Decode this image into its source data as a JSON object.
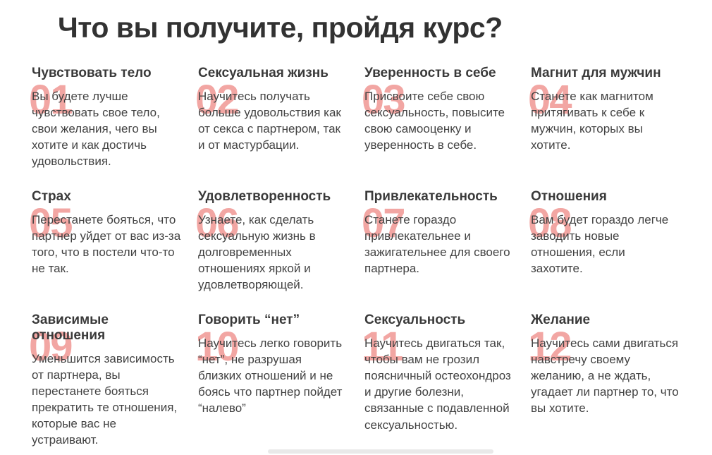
{
  "page": {
    "title": "Что вы получите, пройдя курс?"
  },
  "colors": {
    "title": "#323232",
    "heading": "#3a3a3a",
    "body_text": "#424242",
    "number_accent": "#f2a6a3",
    "background": "#ffffff"
  },
  "cards": [
    {
      "number": "01",
      "heading": "Чувствовать тело",
      "text": "Вы будете лучше чувствовать свое тело, свои желания, чего вы хотите и как достичь удовольствия."
    },
    {
      "number": "02",
      "heading": "Сексуальная жизнь",
      "text": "Научитесь получать больше удовольствия как от секса с партнером, так и от мастурбации."
    },
    {
      "number": "03",
      "heading": "Уверенность в себе",
      "text": "Присвоите себе свою сексуальность, повысите свою самооценку и уверенность в себе."
    },
    {
      "number": "04",
      "heading": "Магнит для мужчин",
      "text": "Станете как магнитом притягивать к себе к мужчин, которых вы хотите."
    },
    {
      "number": "05",
      "heading": "Страх",
      "text": "Перестанете бояться, что партнер уйдет от вас из-за того, что в постели что-то не так."
    },
    {
      "number": "06",
      "heading": "Удовлетворенность",
      "text": "Узнаете, как сделать сексуальную жизнь в долговременных отношениях яркой и удовлетворяющей."
    },
    {
      "number": "07",
      "heading": "Привлекательность",
      "text": "Станете гораздо привлекательнее и зажигательнее для своего партнера."
    },
    {
      "number": "08",
      "heading": "Отношения",
      "text": "Вам будет гораздо легче заводить новые отношения, если захотите."
    },
    {
      "number": "09",
      "heading": "Зависимые отношения",
      "text": "Уменьшится зависимость от партнера, вы перестанете бояться прекратить те отношения, которые вас не устраивают."
    },
    {
      "number": "10",
      "heading": "Говорить “нет”",
      "text": "Научитесь легко говорить “нет”, не разрушая близких отношений и не боясь что партнер пойдет “налево”"
    },
    {
      "number": "11",
      "heading": "Сексуальность",
      "text": "Научитесь двигаться так, чтобы вам не грозил поясничный остеохондроз и другие болезни, связанные с подавленной сексуальностью."
    },
    {
      "number": "12",
      "heading": "Желание",
      "text": "Научитесь сами двигаться навстречу своему желанию, а не ждать, угадает ли партнер то, что вы хотите."
    }
  ]
}
